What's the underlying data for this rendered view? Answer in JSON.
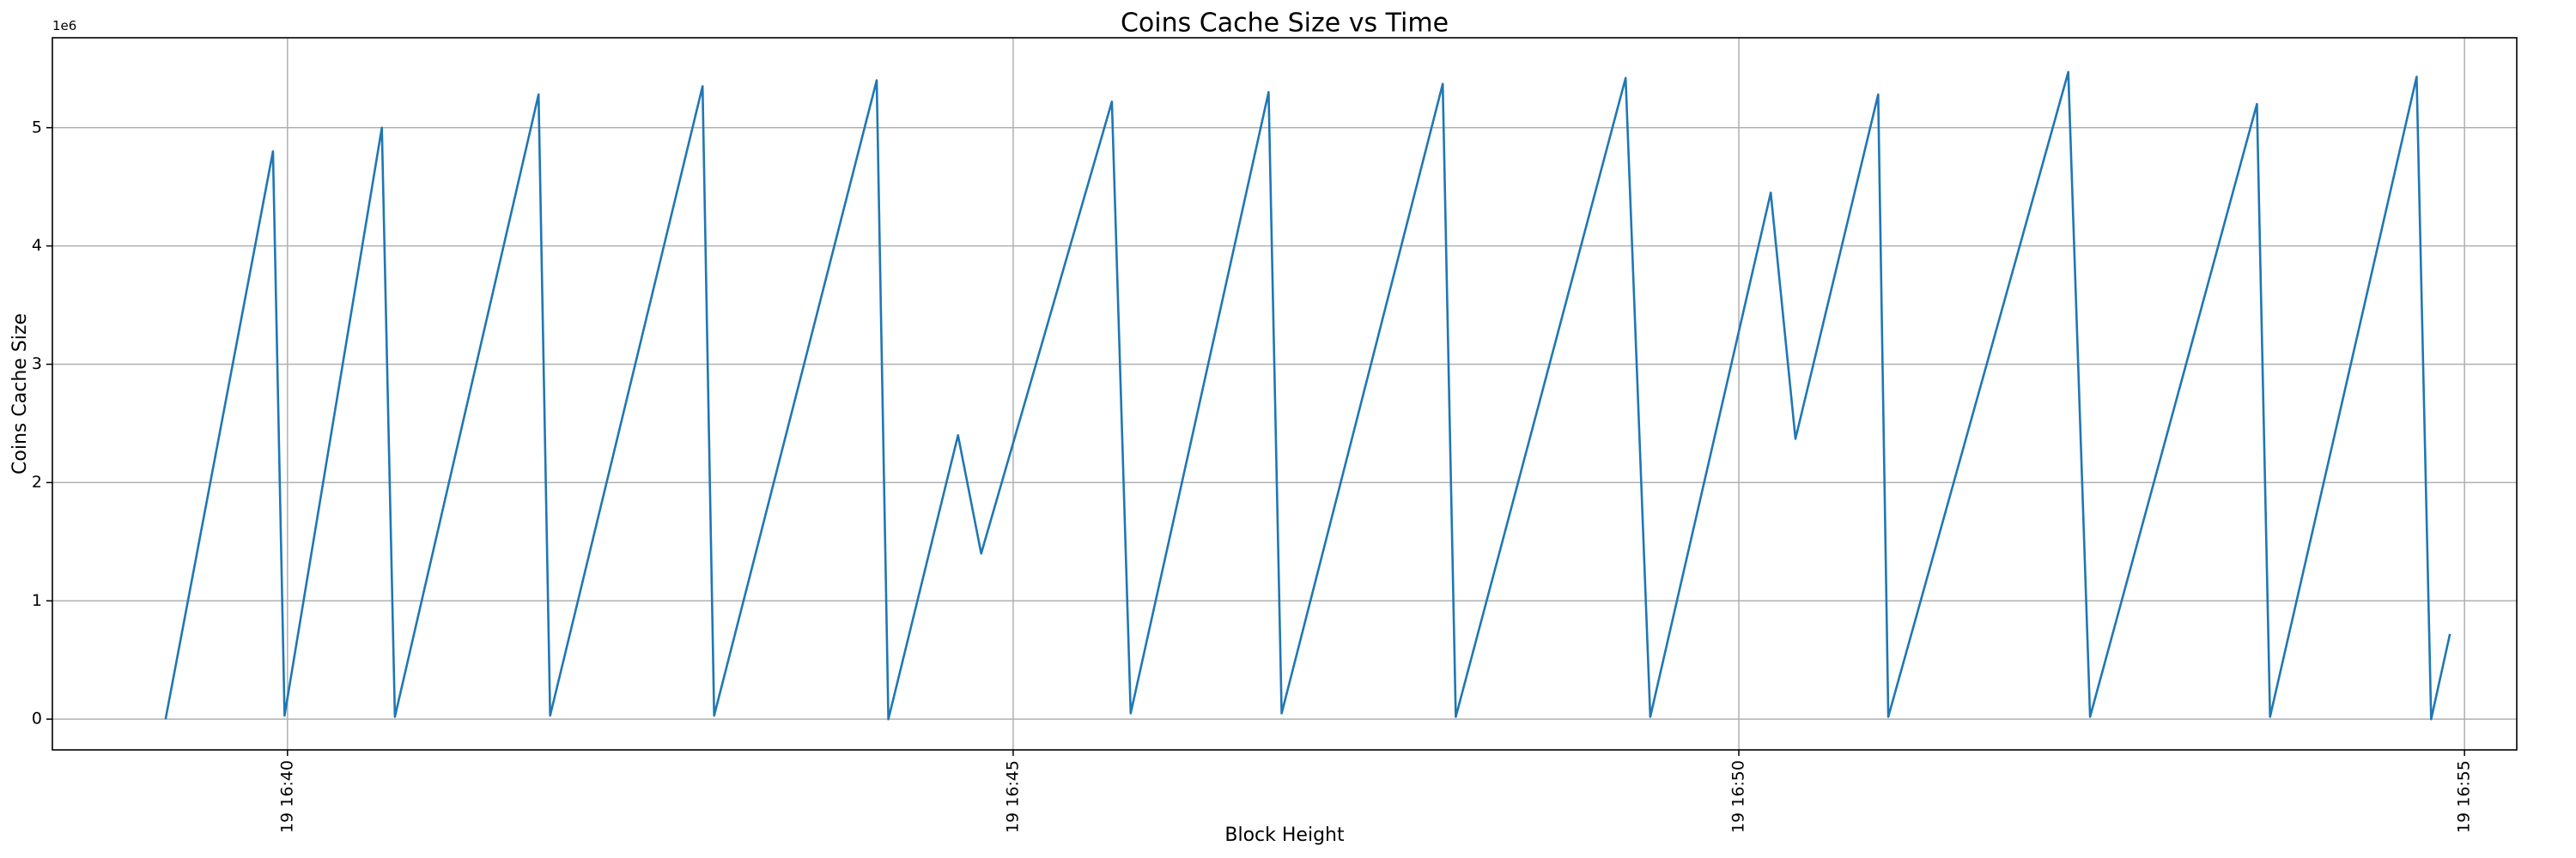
{
  "chart_data": {
    "type": "line",
    "title": "Coins Cache Size vs Time",
    "x_label": "Block Height",
    "y_label": "Coins Cache Size",
    "y_offset_label": "1e6",
    "color": "#1f77b4",
    "grid": true,
    "x": [
      39.16,
      39.9,
      39.98,
      40.65,
      40.74,
      41.73,
      41.81,
      42.86,
      42.94,
      44.06,
      44.14,
      44.62,
      44.78,
      45.68,
      45.81,
      46.76,
      46.85,
      47.96,
      48.05,
      49.22,
      49.39,
      50.22,
      50.39,
      50.96,
      51.03,
      52.27,
      52.42,
      53.57,
      53.66,
      54.67,
      54.77,
      54.9
    ],
    "values": [
      0.0,
      4.8,
      0.03,
      5.0,
      0.02,
      5.28,
      0.03,
      5.35,
      0.03,
      5.4,
      0.0,
      2.4,
      1.4,
      5.22,
      0.05,
      5.3,
      0.05,
      5.37,
      0.02,
      5.42,
      0.02,
      4.45,
      2.37,
      5.28,
      0.02,
      5.47,
      0.02,
      5.2,
      0.02,
      5.43,
      0.0,
      0.72
    ],
    "xlim": [
      38.38,
      55.36
    ],
    "ylim": [
      -0.26,
      5.76
    ],
    "xticks": [
      {
        "value": 40,
        "label": "19 16:40"
      },
      {
        "value": 45,
        "label": "19 16:45"
      },
      {
        "value": 50,
        "label": "19 16:50"
      },
      {
        "value": 55,
        "label": "19 16:55"
      }
    ],
    "yticks": [
      0,
      1,
      2,
      3,
      4,
      5
    ]
  }
}
